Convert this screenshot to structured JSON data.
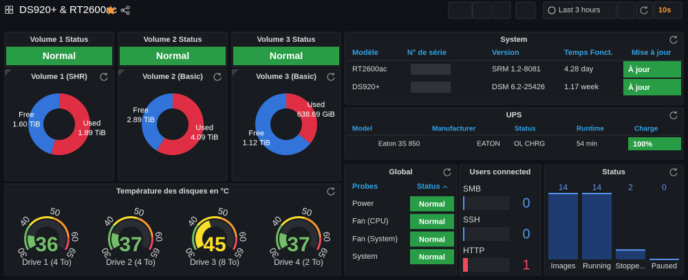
{
  "header": {
    "title": "DS920+ & RT2600ac",
    "time_range": "Last 3 hours",
    "refresh": "10s"
  },
  "volume_status": [
    {
      "title": "Volume 1 Status",
      "status": "Normal"
    },
    {
      "title": "Volume 2 Status",
      "status": "Normal"
    },
    {
      "title": "Volume 3 Status",
      "status": "Normal"
    }
  ],
  "volumes": [
    {
      "title": "Volume 1 (SHR)",
      "slices": [
        {
          "name": "Used",
          "value": 1.89,
          "label": "1.89 TiB",
          "color": "#e02f44"
        },
        {
          "name": "Free",
          "value": 1.6,
          "label": "1.60 TiB",
          "color": "#3274d9"
        }
      ]
    },
    {
      "title": "Volume 2 (Basic)",
      "slices": [
        {
          "name": "Used",
          "value": 4.09,
          "label": "4.09 TiB",
          "color": "#e02f44"
        },
        {
          "name": "Free",
          "value": 2.89,
          "label": "2.89 TiB",
          "color": "#3274d9"
        }
      ]
    },
    {
      "title": "Volume 3 (Basic)",
      "slices": [
        {
          "name": "Used",
          "value": 0.623721,
          "label": "638.69 GiB",
          "color": "#e02f44"
        },
        {
          "name": "Free",
          "value": 1.12,
          "label": "1.12 TiB",
          "color": "#3274d9"
        }
      ]
    }
  ],
  "temperature": {
    "title": "Température des disques en °C",
    "range": [
      30,
      65
    ],
    "ticks": [
      30,
      40,
      50,
      60,
      65
    ],
    "band_colors": [
      "#73bf69",
      "#fade2a",
      "#ff9830",
      "#f2495c"
    ],
    "gauges": [
      {
        "value": 36,
        "label": "Drive 1 (4 To)",
        "color": "#73bf69"
      },
      {
        "value": 37,
        "label": "Drive 2 (4 To)",
        "color": "#73bf69"
      },
      {
        "value": 45,
        "label": "Drive 3 (8 To)",
        "color": "#fade2a"
      },
      {
        "value": 37,
        "label": "Drive 4 (2 To)",
        "color": "#73bf69"
      }
    ]
  },
  "system": {
    "title": "System",
    "columns": [
      "Modèle",
      "N° de série",
      "Version",
      "Temps Fonct.",
      "Mise à jour"
    ],
    "rows": [
      {
        "model": "RT2600ac",
        "version": "SRM 1.2-8081",
        "uptime": "4.28 day",
        "update": "À jour"
      },
      {
        "model": "DS920+",
        "version": "DSM 6.2-25426",
        "uptime": "1.17 week",
        "update": "À jour"
      }
    ]
  },
  "ups": {
    "title": "UPS",
    "columns": [
      "Model",
      "Manufacturer",
      "Status",
      "Runtime",
      "Charge"
    ],
    "row": [
      "Eaton 3S 850",
      "EATON",
      "OL CHRG",
      "54 min",
      "100%"
    ]
  },
  "global": {
    "title": "Global",
    "columns": [
      "Probes",
      "Status"
    ],
    "rows": [
      [
        "Power",
        "Normal"
      ],
      [
        "Fan (CPU)",
        "Normal"
      ],
      [
        "Fan (System)",
        "Normal"
      ],
      [
        "System",
        "Normal"
      ]
    ]
  },
  "users": {
    "title": "Users connected",
    "items": [
      {
        "name": "SMB",
        "value": 0,
        "color": "#5794f2"
      },
      {
        "name": "SSH",
        "value": 0,
        "color": "#5794f2"
      },
      {
        "name": "HTTP",
        "value": 1,
        "color": "#f2495c"
      }
    ]
  },
  "status": {
    "title": "Status",
    "color": "#5794f2",
    "items": [
      {
        "name": "Images",
        "value": 14
      },
      {
        "name": "Running",
        "value": 14
      },
      {
        "name": "Stoppe...",
        "value": 2
      },
      {
        "name": "Paused",
        "value": 0
      }
    ]
  }
}
